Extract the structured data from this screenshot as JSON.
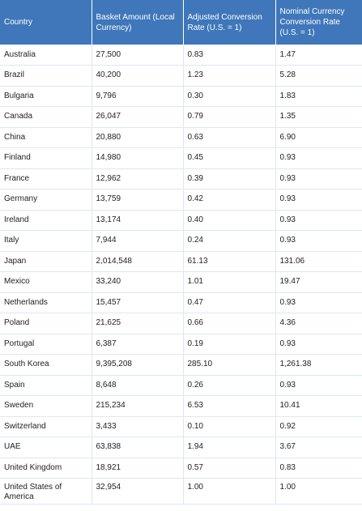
{
  "table": {
    "headers": [
      "Country",
      "Basket Amount (Local Currency)",
      "Adjusted Conversion Rate (U.S. = 1)",
      "Nominal Currency Conversion Rate (U.S. = 1)"
    ],
    "rows": [
      [
        "Australia",
        "27,500",
        "0.83",
        "1.47"
      ],
      [
        "Brazil",
        "40,200",
        "1.23",
        "5.28"
      ],
      [
        "Bulgaria",
        "9,796",
        "0.30",
        "1.83"
      ],
      [
        "Canada",
        "26,047",
        "0.79",
        "1.35"
      ],
      [
        "China",
        "20,880",
        "0.63",
        "6.90"
      ],
      [
        "Finland",
        "14,980",
        "0.45",
        "0.93"
      ],
      [
        "France",
        "12,962",
        "0.39",
        "0.93"
      ],
      [
        "Germany",
        "13,759",
        "0.42",
        "0.93"
      ],
      [
        "Ireland",
        "13,174",
        "0.40",
        "0.93"
      ],
      [
        "Italy",
        "7,944",
        "0.24",
        "0.93"
      ],
      [
        "Japan",
        "2,014,548",
        "61.13",
        "131.06"
      ],
      [
        "Mexico",
        "33,240",
        "1.01",
        "19.47"
      ],
      [
        "Netherlands",
        "15,457",
        "0.47",
        "0.93"
      ],
      [
        "Poland",
        "21,625",
        "0.66",
        "4.36"
      ],
      [
        "Portugal",
        "6,387",
        "0.19",
        "0.93"
      ],
      [
        "South Korea",
        "9,395,208",
        "285.10",
        "1,261.38"
      ],
      [
        "Spain",
        "8,648",
        "0.26",
        "0.93"
      ],
      [
        "Sweden",
        "215,234",
        "6.53",
        "10.41"
      ],
      [
        "Switzerland",
        "3,433",
        "0.10",
        "0.92"
      ],
      [
        "UAE",
        "63,838",
        "1.94",
        "3.67"
      ],
      [
        "United Kingdom",
        "18,921",
        "0.57",
        "0.83"
      ],
      [
        "United States of America",
        "32,954",
        "1.00",
        "1.00"
      ]
    ]
  }
}
